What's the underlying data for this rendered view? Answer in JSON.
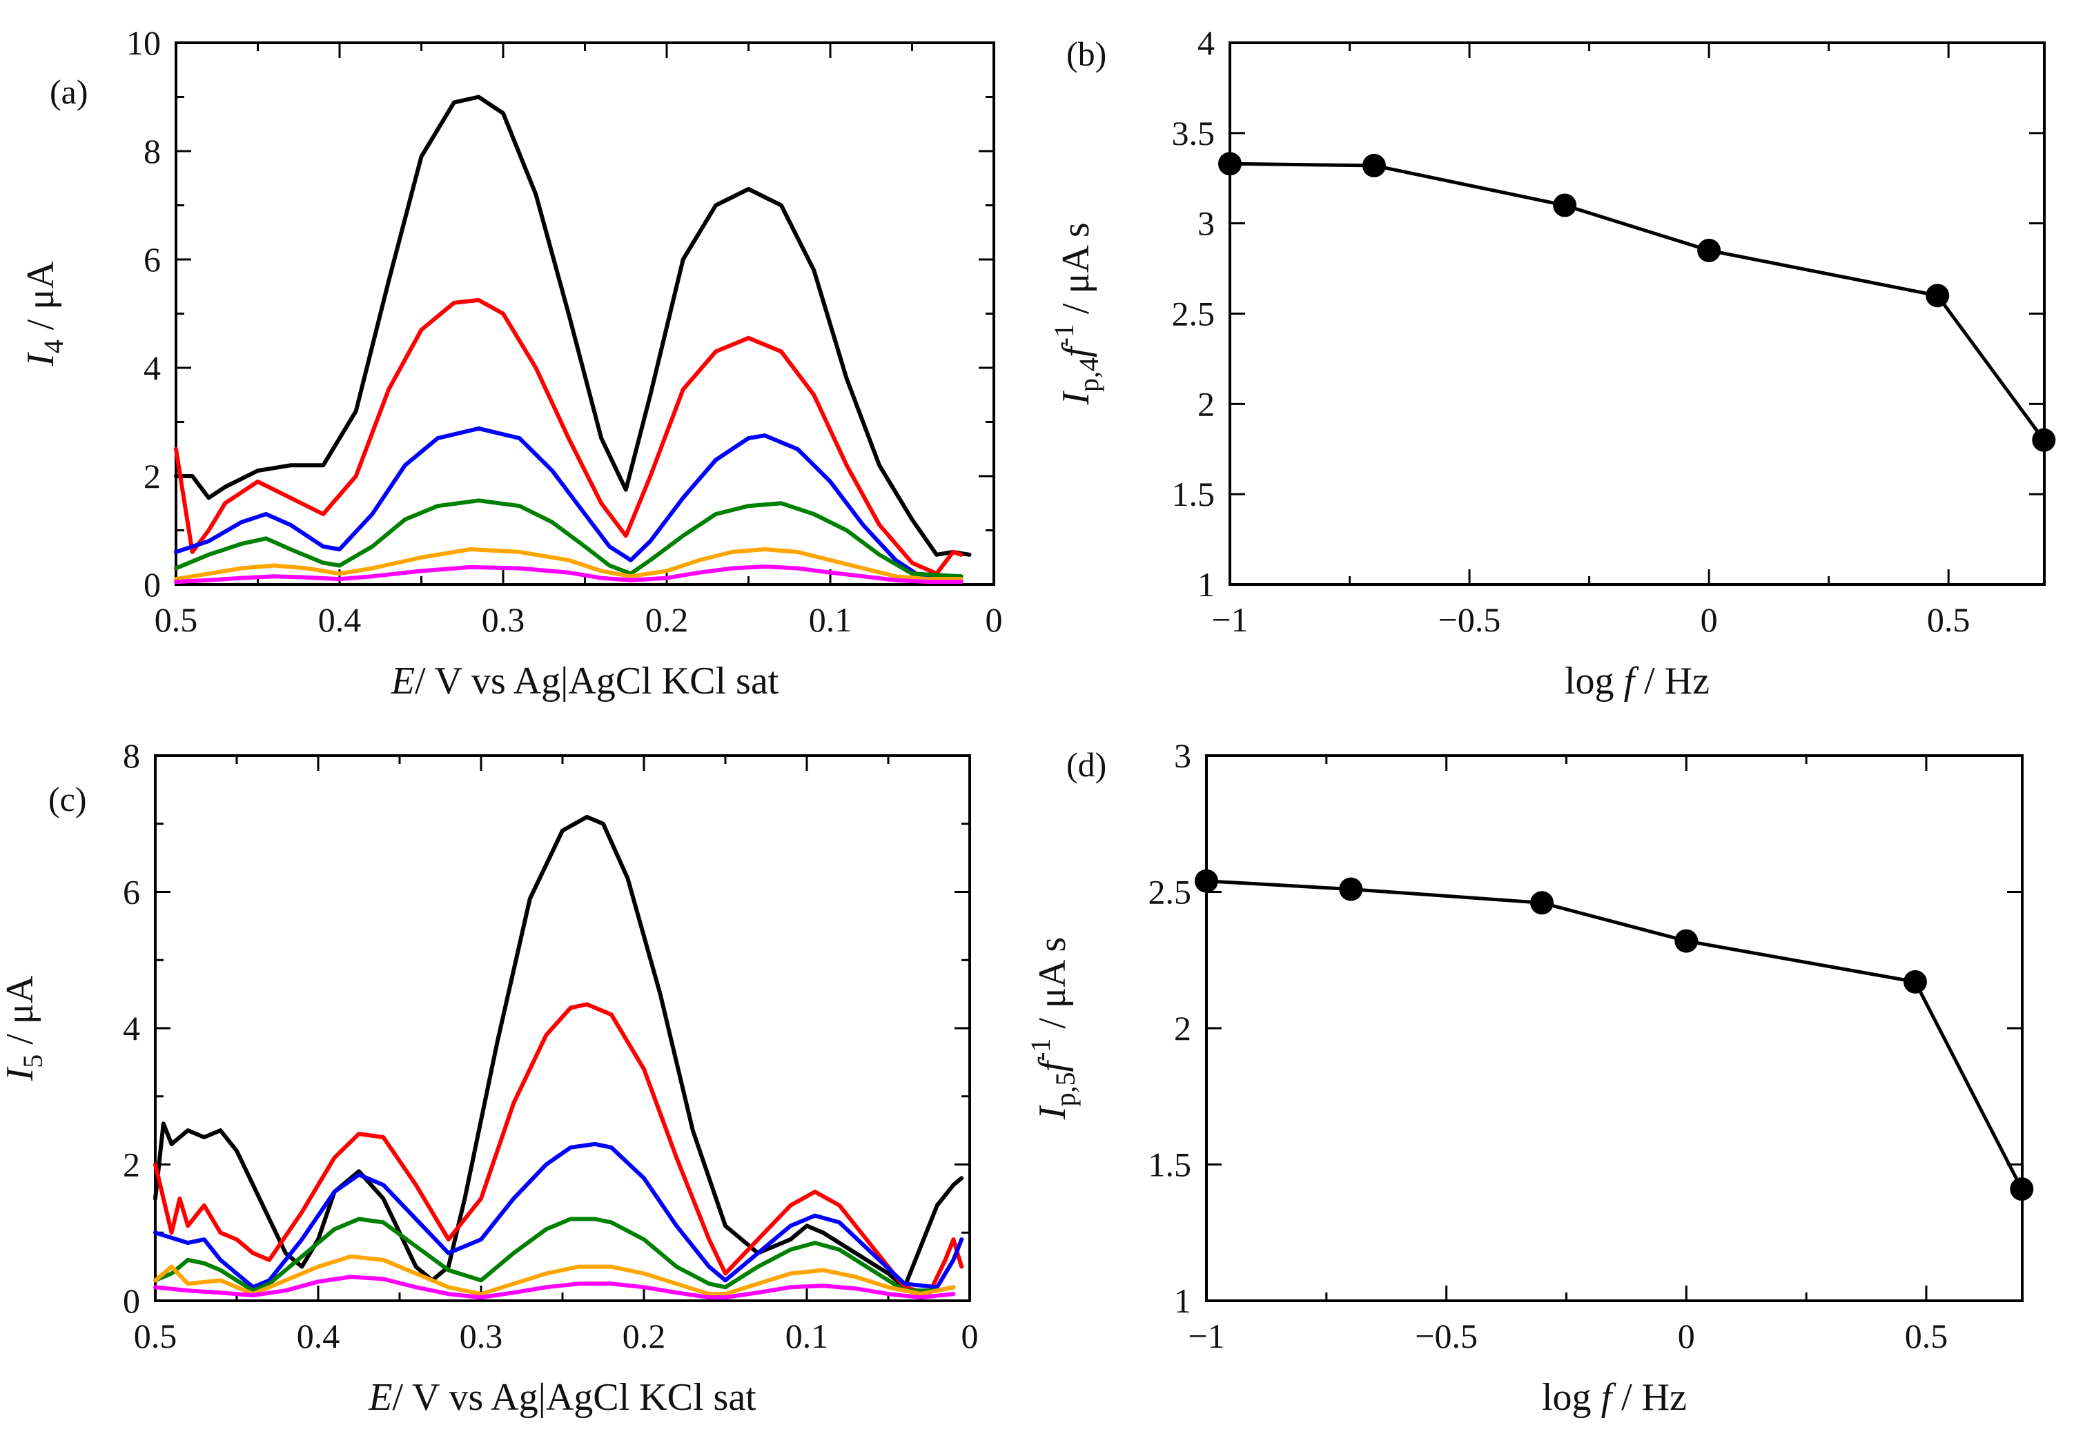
{
  "chart_data": [
    {
      "panel": "(a)",
      "type": "line",
      "xlabel_var": "E",
      "xlabel_rest": "/  V vs Ag|AgCl KCl sat",
      "ylabel_var": "I",
      "ylabel_sub": "4",
      "ylabel_rest": " / μA",
      "xlim": [
        0.5,
        0
      ],
      "ylim": [
        0,
        10
      ],
      "xticks": [
        "0.5",
        "0.4",
        "0.3",
        "0.2",
        "0.1",
        "0"
      ],
      "yticks": [
        "0",
        "2",
        "4",
        "6",
        "8",
        "10"
      ],
      "series": [
        {
          "color": "#000000",
          "x": [
            0.5,
            0.49,
            0.48,
            0.47,
            0.45,
            0.43,
            0.41,
            0.39,
            0.37,
            0.35,
            0.33,
            0.315,
            0.3,
            0.28,
            0.26,
            0.24,
            0.225,
            0.21,
            0.19,
            0.17,
            0.15,
            0.13,
            0.11,
            0.09,
            0.07,
            0.05,
            0.035,
            0.025,
            0.015
          ],
          "y": [
            2.0,
            2.0,
            1.6,
            1.8,
            2.1,
            2.2,
            2.2,
            3.2,
            5.6,
            7.9,
            8.9,
            9.0,
            8.7,
            7.2,
            5.0,
            2.7,
            1.75,
            3.5,
            6.0,
            7.0,
            7.3,
            7.0,
            5.8,
            3.8,
            2.2,
            1.2,
            0.55,
            0.6,
            0.55
          ]
        },
        {
          "color": "#ff0000",
          "x": [
            0.5,
            0.49,
            0.48,
            0.47,
            0.45,
            0.43,
            0.41,
            0.39,
            0.37,
            0.35,
            0.33,
            0.315,
            0.3,
            0.28,
            0.26,
            0.24,
            0.225,
            0.21,
            0.19,
            0.17,
            0.15,
            0.13,
            0.11,
            0.09,
            0.07,
            0.05,
            0.035,
            0.025,
            0.02
          ],
          "y": [
            2.5,
            0.6,
            1.0,
            1.5,
            1.9,
            1.6,
            1.3,
            2.0,
            3.6,
            4.7,
            5.2,
            5.25,
            5.0,
            4.0,
            2.7,
            1.5,
            0.9,
            2.0,
            3.6,
            4.3,
            4.55,
            4.3,
            3.5,
            2.2,
            1.1,
            0.4,
            0.2,
            0.6,
            0.55
          ]
        },
        {
          "color": "#0000ff",
          "x": [
            0.5,
            0.48,
            0.46,
            0.445,
            0.43,
            0.41,
            0.4,
            0.38,
            0.36,
            0.34,
            0.315,
            0.29,
            0.27,
            0.25,
            0.235,
            0.222,
            0.21,
            0.19,
            0.17,
            0.15,
            0.14,
            0.12,
            0.1,
            0.08,
            0.06,
            0.045,
            0.02
          ],
          "y": [
            0.6,
            0.8,
            1.15,
            1.3,
            1.1,
            0.7,
            0.65,
            1.3,
            2.2,
            2.7,
            2.88,
            2.7,
            2.1,
            1.3,
            0.7,
            0.45,
            0.8,
            1.6,
            2.3,
            2.7,
            2.75,
            2.5,
            1.9,
            1.1,
            0.45,
            0.15,
            0.15
          ]
        },
        {
          "color": "#008000",
          "x": [
            0.5,
            0.48,
            0.46,
            0.445,
            0.43,
            0.41,
            0.4,
            0.38,
            0.36,
            0.34,
            0.315,
            0.29,
            0.27,
            0.25,
            0.235,
            0.222,
            0.21,
            0.19,
            0.17,
            0.15,
            0.13,
            0.11,
            0.09,
            0.07,
            0.05,
            0.02
          ],
          "y": [
            0.3,
            0.55,
            0.75,
            0.85,
            0.65,
            0.4,
            0.35,
            0.7,
            1.2,
            1.45,
            1.55,
            1.45,
            1.15,
            0.7,
            0.35,
            0.2,
            0.45,
            0.9,
            1.3,
            1.45,
            1.5,
            1.3,
            1.0,
            0.55,
            0.2,
            0.15
          ]
        },
        {
          "color": "#ffa500",
          "x": [
            0.5,
            0.48,
            0.46,
            0.44,
            0.42,
            0.4,
            0.38,
            0.35,
            0.32,
            0.29,
            0.26,
            0.24,
            0.222,
            0.2,
            0.18,
            0.16,
            0.14,
            0.12,
            0.1,
            0.08,
            0.06,
            0.04,
            0.02
          ],
          "y": [
            0.1,
            0.2,
            0.3,
            0.35,
            0.3,
            0.2,
            0.3,
            0.5,
            0.65,
            0.6,
            0.45,
            0.25,
            0.15,
            0.25,
            0.45,
            0.6,
            0.65,
            0.6,
            0.45,
            0.3,
            0.15,
            0.1,
            0.1
          ]
        },
        {
          "color": "#ff00ff",
          "x": [
            0.5,
            0.48,
            0.46,
            0.44,
            0.42,
            0.4,
            0.38,
            0.35,
            0.32,
            0.29,
            0.26,
            0.24,
            0.222,
            0.2,
            0.18,
            0.16,
            0.14,
            0.12,
            0.1,
            0.08,
            0.06,
            0.04,
            0.02
          ],
          "y": [
            0.05,
            0.08,
            0.12,
            0.15,
            0.13,
            0.1,
            0.15,
            0.25,
            0.32,
            0.3,
            0.22,
            0.12,
            0.08,
            0.12,
            0.22,
            0.3,
            0.33,
            0.3,
            0.22,
            0.15,
            0.08,
            0.05,
            0.05
          ]
        }
      ]
    },
    {
      "panel": "(b)",
      "type": "line",
      "xlabel_pre": "log  ",
      "xlabel_var": "f",
      "xlabel_rest": " / Hz",
      "ylabel_var": "I",
      "ylabel_sub": "p,4",
      "ylabel_f": "f",
      "ylabel_sup": "-1",
      "ylabel_rest": "  / μA  s",
      "xlim": [
        -1,
        0.7
      ],
      "ylim": [
        1,
        4
      ],
      "xticks": [
        "−1",
        "−0.5",
        "0",
        "0.5"
      ],
      "yticks": [
        "1",
        "1.5",
        "2",
        "2.5",
        "3",
        "3.5",
        "4"
      ],
      "x": [
        -1,
        -0.699,
        -0.301,
        0,
        0.477,
        0.699
      ],
      "values": [
        3.33,
        3.32,
        3.1,
        2.85,
        2.6,
        1.8
      ]
    },
    {
      "panel": "(c)",
      "type": "line",
      "xlabel_var": "E",
      "xlabel_rest": "/  V vs Ag|AgCl KCl sat",
      "ylabel_var": "I",
      "ylabel_sub": "5",
      "ylabel_rest": " / μA",
      "xlim": [
        0.5,
        0
      ],
      "ylim": [
        0,
        8
      ],
      "xticks": [
        "0.5",
        "0.4",
        "0.3",
        "0.2",
        "0.1",
        "0"
      ],
      "yticks": [
        "0",
        "2",
        "4",
        "6",
        "8"
      ],
      "series": [
        {
          "color": "#000000",
          "x": [
            0.5,
            0.495,
            0.49,
            0.48,
            0.47,
            0.46,
            0.45,
            0.44,
            0.43,
            0.42,
            0.41,
            0.4,
            0.39,
            0.375,
            0.36,
            0.34,
            0.33,
            0.32,
            0.31,
            0.29,
            0.27,
            0.25,
            0.235,
            0.225,
            0.21,
            0.19,
            0.17,
            0.15,
            0.13,
            0.11,
            0.1,
            0.09,
            0.07,
            0.05,
            0.04,
            0.03,
            0.02,
            0.01,
            0.005
          ],
          "y": [
            1.5,
            2.6,
            2.3,
            2.5,
            2.4,
            2.5,
            2.2,
            1.7,
            1.2,
            0.7,
            0.5,
            0.9,
            1.6,
            1.9,
            1.5,
            0.5,
            0.3,
            0.5,
            1.5,
            3.8,
            5.9,
            6.9,
            7.1,
            7.0,
            6.2,
            4.5,
            2.5,
            1.1,
            0.7,
            0.9,
            1.1,
            1.0,
            0.7,
            0.4,
            0.2,
            0.8,
            1.4,
            1.7,
            1.8
          ]
        },
        {
          "color": "#ff0000",
          "x": [
            0.5,
            0.49,
            0.485,
            0.48,
            0.47,
            0.46,
            0.45,
            0.44,
            0.43,
            0.41,
            0.39,
            0.375,
            0.36,
            0.34,
            0.32,
            0.3,
            0.28,
            0.26,
            0.245,
            0.235,
            0.22,
            0.2,
            0.18,
            0.16,
            0.15,
            0.13,
            0.11,
            0.095,
            0.08,
            0.06,
            0.04,
            0.025,
            0.015,
            0.01,
            0.005
          ],
          "y": [
            2.0,
            1.0,
            1.5,
            1.1,
            1.4,
            1.0,
            0.9,
            0.7,
            0.6,
            1.3,
            2.1,
            2.45,
            2.4,
            1.7,
            0.9,
            1.5,
            2.9,
            3.9,
            4.3,
            4.35,
            4.2,
            3.4,
            2.1,
            0.9,
            0.4,
            0.9,
            1.4,
            1.6,
            1.4,
            0.8,
            0.2,
            0.1,
            0.6,
            0.9,
            0.5
          ]
        },
        {
          "color": "#0000ff",
          "x": [
            0.5,
            0.48,
            0.47,
            0.46,
            0.45,
            0.44,
            0.43,
            0.41,
            0.39,
            0.375,
            0.36,
            0.34,
            0.32,
            0.3,
            0.28,
            0.26,
            0.245,
            0.23,
            0.22,
            0.2,
            0.18,
            0.16,
            0.15,
            0.13,
            0.11,
            0.095,
            0.08,
            0.06,
            0.04,
            0.02,
            0.01,
            0.005
          ],
          "y": [
            1.0,
            0.85,
            0.9,
            0.6,
            0.4,
            0.2,
            0.3,
            0.9,
            1.6,
            1.85,
            1.7,
            1.2,
            0.7,
            0.9,
            1.5,
            2.0,
            2.25,
            2.3,
            2.25,
            1.8,
            1.1,
            0.5,
            0.3,
            0.7,
            1.1,
            1.25,
            1.15,
            0.7,
            0.25,
            0.2,
            0.6,
            0.9
          ]
        },
        {
          "color": "#008000",
          "x": [
            0.5,
            0.49,
            0.48,
            0.47,
            0.46,
            0.45,
            0.44,
            0.43,
            0.41,
            0.39,
            0.375,
            0.36,
            0.34,
            0.32,
            0.3,
            0.28,
            0.26,
            0.245,
            0.23,
            0.22,
            0.2,
            0.18,
            0.16,
            0.15,
            0.13,
            0.11,
            0.095,
            0.08,
            0.06,
            0.04,
            0.02,
            0.01
          ],
          "y": [
            0.3,
            0.4,
            0.6,
            0.55,
            0.45,
            0.3,
            0.15,
            0.25,
            0.65,
            1.05,
            1.2,
            1.15,
            0.8,
            0.45,
            0.3,
            0.7,
            1.05,
            1.2,
            1.2,
            1.15,
            0.9,
            0.5,
            0.25,
            0.2,
            0.5,
            0.75,
            0.85,
            0.75,
            0.45,
            0.15,
            0.15,
            0.2
          ]
        },
        {
          "color": "#ffa500",
          "x": [
            0.5,
            0.49,
            0.48,
            0.46,
            0.44,
            0.42,
            0.4,
            0.38,
            0.36,
            0.34,
            0.32,
            0.3,
            0.28,
            0.26,
            0.24,
            0.22,
            0.2,
            0.18,
            0.16,
            0.15,
            0.13,
            0.11,
            0.09,
            0.07,
            0.05,
            0.03,
            0.01
          ],
          "y": [
            0.3,
            0.5,
            0.25,
            0.3,
            0.1,
            0.3,
            0.5,
            0.65,
            0.6,
            0.4,
            0.2,
            0.1,
            0.25,
            0.4,
            0.5,
            0.5,
            0.4,
            0.25,
            0.1,
            0.1,
            0.25,
            0.4,
            0.45,
            0.35,
            0.2,
            0.1,
            0.2
          ]
        },
        {
          "color": "#ff00ff",
          "x": [
            0.5,
            0.48,
            0.46,
            0.44,
            0.42,
            0.4,
            0.38,
            0.36,
            0.34,
            0.32,
            0.3,
            0.28,
            0.26,
            0.24,
            0.22,
            0.2,
            0.18,
            0.16,
            0.15,
            0.13,
            0.11,
            0.09,
            0.07,
            0.05,
            0.03,
            0.01
          ],
          "y": [
            0.2,
            0.15,
            0.12,
            0.08,
            0.15,
            0.28,
            0.35,
            0.32,
            0.2,
            0.1,
            0.05,
            0.12,
            0.2,
            0.25,
            0.25,
            0.2,
            0.12,
            0.05,
            0.05,
            0.12,
            0.2,
            0.22,
            0.18,
            0.1,
            0.05,
            0.1
          ]
        }
      ]
    },
    {
      "panel": "(d)",
      "type": "line",
      "xlabel_pre": "log  ",
      "xlabel_var": "f",
      "xlabel_rest": " / Hz",
      "ylabel_var": "I",
      "ylabel_sub": "p,5",
      "ylabel_f": "f",
      "ylabel_sup": "-1",
      "ylabel_rest": "  / μA  s",
      "xlim": [
        -1,
        0.7
      ],
      "ylim": [
        1,
        3
      ],
      "xticks": [
        "−1",
        "−0.5",
        "0",
        "0.5"
      ],
      "yticks": [
        "1",
        "1.5",
        "2",
        "2.5",
        "3"
      ],
      "x": [
        -1,
        -0.699,
        -0.301,
        0,
        0.477,
        0.699
      ],
      "values": [
        2.54,
        2.51,
        2.46,
        2.32,
        2.17,
        1.41
      ]
    }
  ]
}
